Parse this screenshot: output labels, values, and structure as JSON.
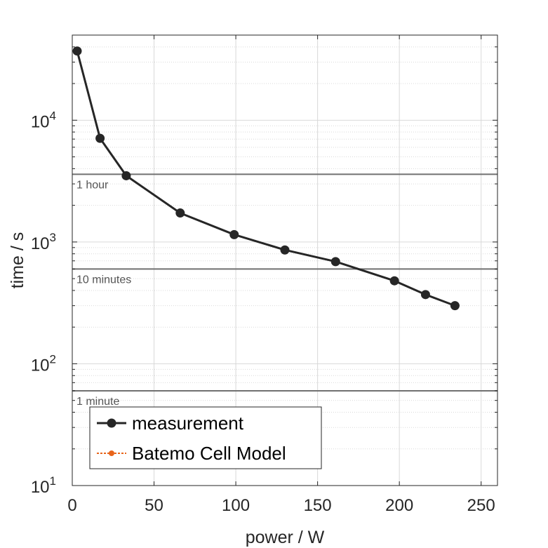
{
  "chart_data": {
    "type": "line",
    "xlabel": "power / W",
    "ylabel": "time / s",
    "xlim": [
      0,
      260
    ],
    "ylim": [
      10,
      50000
    ],
    "yscale": "log",
    "grid": true,
    "x_ticks": [
      0,
      50,
      100,
      150,
      200,
      250
    ],
    "x_tick_labels": [
      "0",
      "50",
      "100",
      "150",
      "200",
      "250"
    ],
    "y_ticks": [
      {
        "value": 10,
        "base": "10",
        "exp": "1"
      },
      {
        "value": 100,
        "base": "10",
        "exp": "2"
      },
      {
        "value": 1000,
        "base": "10",
        "exp": "3"
      },
      {
        "value": 10000,
        "base": "10",
        "exp": "4"
      }
    ],
    "reference_lines": [
      {
        "value": 3600,
        "label": "1 hour"
      },
      {
        "value": 600,
        "label": "10 minutes"
      },
      {
        "value": 60,
        "label": "1 minute"
      }
    ],
    "series": [
      {
        "name": "measurement",
        "color": "#262626",
        "x": [
          3,
          17,
          33,
          66,
          99,
          130,
          161,
          197,
          216,
          234
        ],
        "y": [
          37000,
          7100,
          3500,
          1730,
          1150,
          860,
          690,
          480,
          370,
          300
        ]
      },
      {
        "name": "Batemo Cell Model",
        "color": "#e8641a",
        "x": [],
        "y": []
      }
    ],
    "legend_location": "bottom-left"
  }
}
